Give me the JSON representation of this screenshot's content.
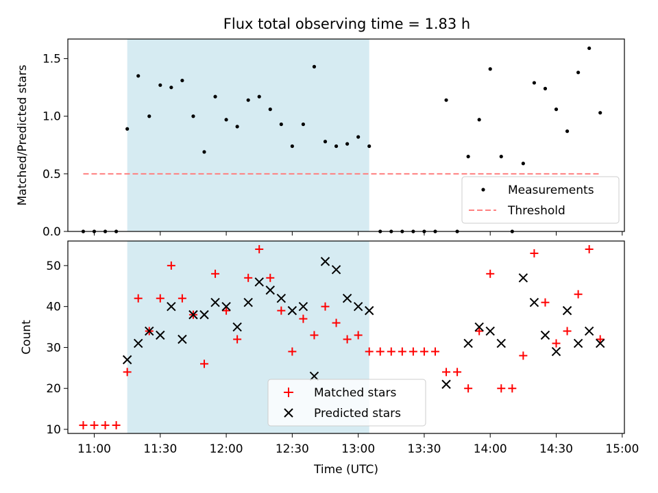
{
  "title": "Flux total observing time = 1.83 h",
  "chart_data": [
    {
      "type": "scatter",
      "panel": "top",
      "ylabel": "Matched/Predicted stars",
      "ylim": [
        0,
        1.67
      ],
      "y_ticks": [
        0.0,
        0.5,
        1.0,
        1.5
      ],
      "y_tick_labels": [
        "0.0",
        "0.5",
        "1.0",
        "1.5"
      ],
      "shaded_span": {
        "start": "11:15",
        "end": "13:05",
        "color": "#add8e6"
      },
      "legend": {
        "position": "lower right",
        "entries": [
          "Measurements",
          "Threshold"
        ]
      },
      "series": [
        {
          "name": "Measurements",
          "color": "#000000",
          "marker": "dot",
          "x": [
            "10:55",
            "11:00",
            "11:05",
            "11:10",
            "11:15",
            "11:20",
            "11:25",
            "11:30",
            "11:35",
            "11:40",
            "11:45",
            "11:50",
            "11:55",
            "12:00",
            "12:05",
            "12:10",
            "12:15",
            "12:20",
            "12:25",
            "12:30",
            "12:35",
            "12:40",
            "12:45",
            "12:50",
            "12:55",
            "13:00",
            "13:05",
            "13:10",
            "13:15",
            "13:20",
            "13:25",
            "13:30",
            "13:35",
            "13:40",
            "13:45",
            "13:50",
            "13:55",
            "14:00",
            "14:05",
            "14:10",
            "14:15",
            "14:20",
            "14:25",
            "14:30",
            "14:35",
            "14:40",
            "14:45",
            "14:50"
          ],
          "values": [
            0,
            0,
            0,
            0,
            0.89,
            1.35,
            1.0,
            1.27,
            1.25,
            1.31,
            1.0,
            0.69,
            1.17,
            0.97,
            0.91,
            1.14,
            1.17,
            1.06,
            0.93,
            0.74,
            0.93,
            1.43,
            0.78,
            0.74,
            0.76,
            0.82,
            0.74,
            0,
            0,
            0,
            0,
            0,
            0,
            1.14,
            0,
            0.65,
            0.97,
            1.41,
            0.65,
            0,
            0.59,
            1.29,
            1.24,
            1.06,
            0.87,
            1.38,
            1.59,
            1.03
          ]
        },
        {
          "name": "Threshold",
          "color": "#ff7f7f",
          "style": "dashed",
          "x": [
            "10:55",
            "14:50"
          ],
          "values": [
            0.5,
            0.5
          ]
        }
      ]
    },
    {
      "type": "scatter",
      "panel": "bottom",
      "xlabel": "Time (UTC)",
      "ylabel": "Count",
      "ylim": [
        9,
        56
      ],
      "xlim": [
        "10:48",
        "15:01"
      ],
      "x_ticks": [
        "11:00",
        "11:30",
        "12:00",
        "12:30",
        "13:00",
        "13:30",
        "14:00",
        "14:30",
        "15:00"
      ],
      "y_ticks": [
        10,
        20,
        30,
        40,
        50
      ],
      "y_tick_labels": [
        "10",
        "20",
        "30",
        "40",
        "50"
      ],
      "shaded_span": {
        "start": "11:15",
        "end": "13:05",
        "color": "#add8e6"
      },
      "legend": {
        "position": "lower center",
        "entries": [
          "Matched stars",
          "Predicted stars"
        ]
      },
      "series": [
        {
          "name": "Matched stars",
          "color": "#ff0000",
          "marker": "plus",
          "x": [
            "10:55",
            "11:00",
            "11:05",
            "11:10",
            "11:15",
            "11:20",
            "11:25",
            "11:30",
            "11:35",
            "11:40",
            "11:45",
            "11:50",
            "11:55",
            "12:00",
            "12:05",
            "12:10",
            "12:15",
            "12:20",
            "12:25",
            "12:30",
            "12:35",
            "12:40",
            "12:45",
            "12:50",
            "12:55",
            "13:00",
            "13:05",
            "13:10",
            "13:15",
            "13:20",
            "13:25",
            "13:30",
            "13:35",
            "13:40",
            "13:45",
            "13:50",
            "13:55",
            "14:00",
            "14:05",
            "14:10",
            "14:15",
            "14:20",
            "14:25",
            "14:30",
            "14:35",
            "14:40",
            "14:45",
            "14:50"
          ],
          "values": [
            11,
            11,
            11,
            11,
            24,
            42,
            34,
            42,
            50,
            42,
            38,
            26,
            48,
            39,
            32,
            47,
            54,
            47,
            39,
            29,
            37,
            33,
            40,
            36,
            32,
            33,
            29,
            29,
            29,
            29,
            29,
            29,
            29,
            24,
            24,
            20,
            34,
            48,
            20,
            20,
            28,
            53,
            41,
            31,
            34,
            43,
            54,
            32
          ]
        },
        {
          "name": "Predicted stars",
          "color": "#000000",
          "marker": "x",
          "x": [
            "11:15",
            "11:20",
            "11:25",
            "11:30",
            "11:35",
            "11:40",
            "11:45",
            "11:50",
            "11:55",
            "12:00",
            "12:05",
            "12:10",
            "12:15",
            "12:20",
            "12:25",
            "12:30",
            "12:35",
            "12:40",
            "12:45",
            "12:50",
            "12:55",
            "13:00",
            "13:05",
            "13:40",
            "13:50",
            "13:55",
            "14:00",
            "14:05",
            "14:15",
            "14:20",
            "14:25",
            "14:30",
            "14:35",
            "14:40",
            "14:45",
            "14:50"
          ],
          "values": [
            27,
            31,
            34,
            33,
            40,
            32,
            38,
            38,
            41,
            40,
            35,
            41,
            46,
            44,
            42,
            39,
            40,
            23,
            51,
            49,
            42,
            40,
            39,
            21,
            31,
            35,
            34,
            31,
            47,
            41,
            33,
            29,
            39,
            31,
            34,
            31
          ]
        }
      ]
    }
  ]
}
